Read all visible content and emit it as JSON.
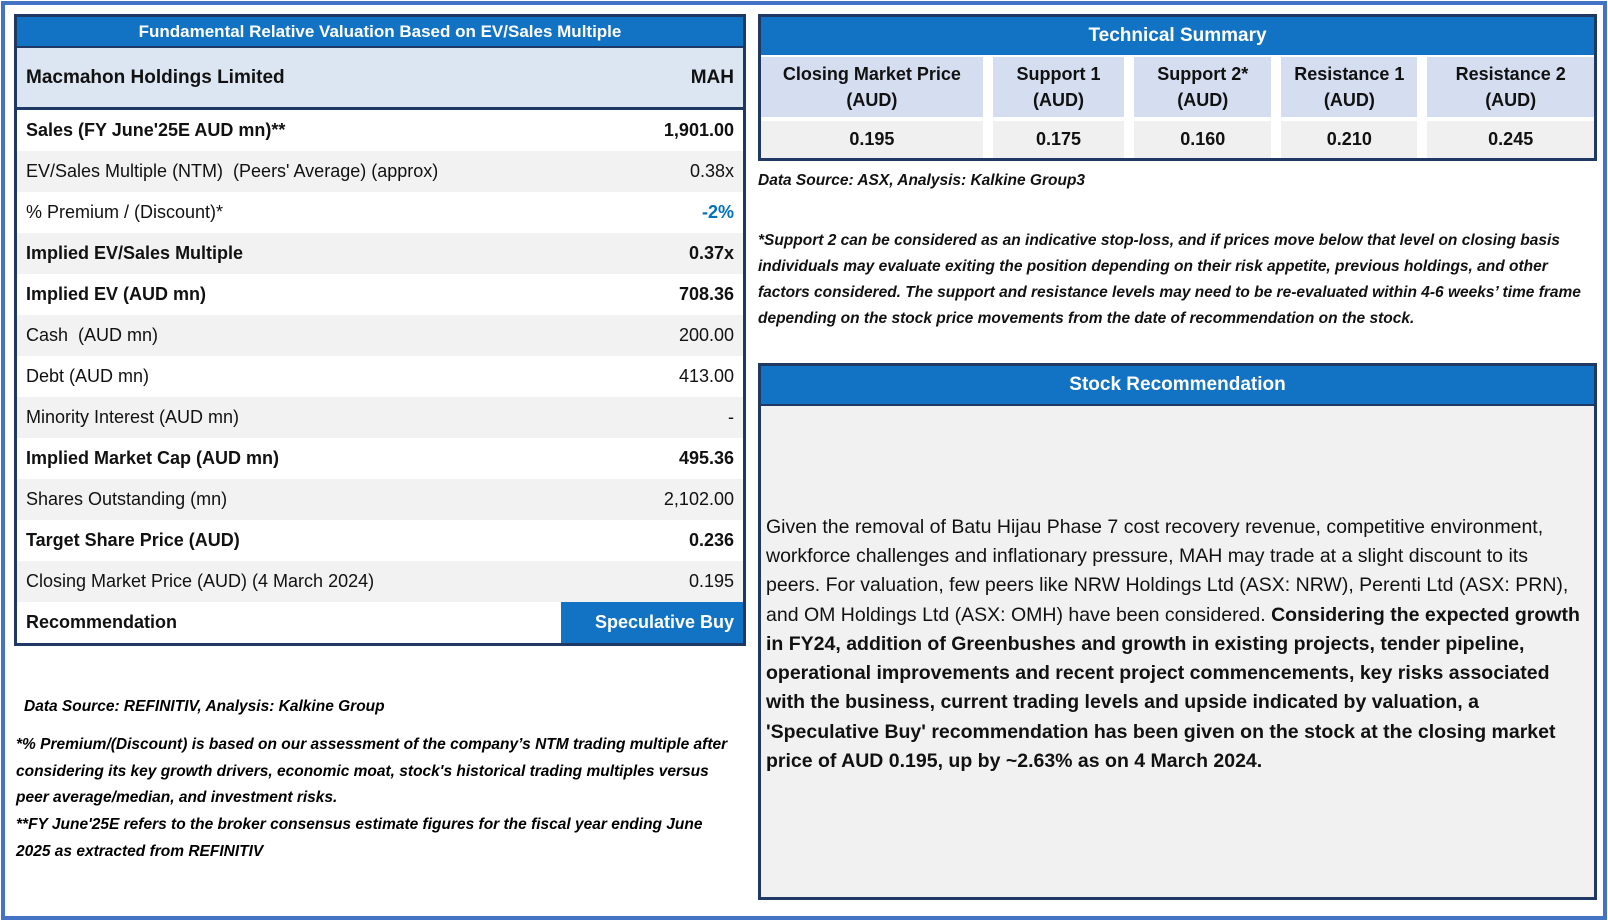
{
  "colors": {
    "header_blue": "#1273C4",
    "frame_blue": "#4472C4",
    "border_navy": "#1F3864",
    "company_row_blue": "#DCE6F2",
    "tech_header_blue": "#D5DEF0",
    "row_gray": "#F2F2F2",
    "body_gray": "#F1F1F1",
    "accent_blue": "#0070C0"
  },
  "valuation_table": {
    "title": "Fundamental Relative Valuation Based on EV/Sales Multiple",
    "company_name": "Macmahon Holdings Limited",
    "ticker": "MAH",
    "rows": [
      {
        "label": "Sales (FY June'25E AUD mn)**",
        "value": "1,901.00",
        "bold": true
      },
      {
        "label": "EV/Sales Multiple (NTM)  (Peers' Average) (approx)",
        "value": "0.38x",
        "bold": false
      },
      {
        "label": "% Premium / (Discount)*",
        "value": "-2%",
        "bold": false,
        "value_accent": true
      },
      {
        "label": "Implied EV/Sales Multiple",
        "value": "0.37x",
        "bold": true
      },
      {
        "label": "Implied EV (AUD mn)",
        "value": "708.36",
        "bold": true
      },
      {
        "label": "Cash  (AUD mn)",
        "value": "200.00",
        "bold": false
      },
      {
        "label": "Debt (AUD mn)",
        "value": "413.00",
        "bold": false
      },
      {
        "label": "Minority Interest (AUD mn)",
        "value": "-",
        "bold": false
      },
      {
        "label": "Implied Market Cap (AUD mn)",
        "value": "495.36",
        "bold": true
      },
      {
        "label": "Shares Outstanding (mn)",
        "value": "2,102.00",
        "bold": false
      },
      {
        "label": "Target Share Price (AUD)",
        "value": "0.236",
        "bold": true
      },
      {
        "label": "Closing Market Price (AUD) (4 March 2024)",
        "value": "0.195",
        "bold": false
      },
      {
        "label": "Recommendation",
        "value": "Speculative Buy",
        "bold": true,
        "highlight": true
      }
    ],
    "source_note": "Data Source: REFINITIV, Analysis: Kalkine Group",
    "footnote_premium": "*% Premium/(Discount) is based on our assessment of the company’s NTM trading multiple after considering its key growth drivers, economic moat, stock's historical trading multiples versus peer average/median, and investment risks.",
    "footnote_fy": "**FY June'25E refers to the broker consensus estimate figures for the fiscal year ending June 2025 as extracted from REFINITIV"
  },
  "technical_summary": {
    "title": "Technical Summary",
    "columns": [
      {
        "label": "Closing Market Price",
        "unit": "(AUD)",
        "value": "0.195"
      },
      {
        "label": "Support 1",
        "unit": "(AUD)",
        "value": "0.175"
      },
      {
        "label": "Support 2*",
        "unit": "(AUD)",
        "value": "0.160"
      },
      {
        "label": "Resistance 1",
        "unit": "(AUD)",
        "value": "0.210"
      },
      {
        "label": "Resistance 2",
        "unit": "(AUD)",
        "value": "0.245"
      }
    ],
    "source_note": "Data Source: ASX, Analysis: Kalkine Group3",
    "support_footnote": "*Support 2 can be considered as an indicative stop-loss, and if prices move below that level on closing basis individuals may evaluate exiting the position depending on their risk appetite, previous holdings, and other factors considered. The support and resistance levels may need to be re-evaluated within 4-6 weeks’ time frame depending on the stock price movements from the date of recommendation on the stock."
  },
  "stock_recommendation": {
    "title": "Stock Recommendation",
    "body_regular": "Given the removal of Batu Hijau Phase 7 cost recovery revenue, competitive environment, workforce challenges and inflationary pressure, MAH may trade at a slight discount to its peers. For valuation, few peers like NRW Holdings Ltd (ASX: NRW), Perenti Ltd (ASX: PRN), and OM Holdings Ltd (ASX: OMH) have been considered. ",
    "body_bold": "Considering the expected growth in FY24, addition of Greenbushes and growth in existing projects, tender pipeline,  operational improvements and recent project commencements, key risks associated with the business, current trading levels and upside indicated by valuation, a 'Speculative Buy' recommendation has been given on the stock at the closing market price of AUD 0.195, up by ~2.63% as on 4 March 2024."
  }
}
